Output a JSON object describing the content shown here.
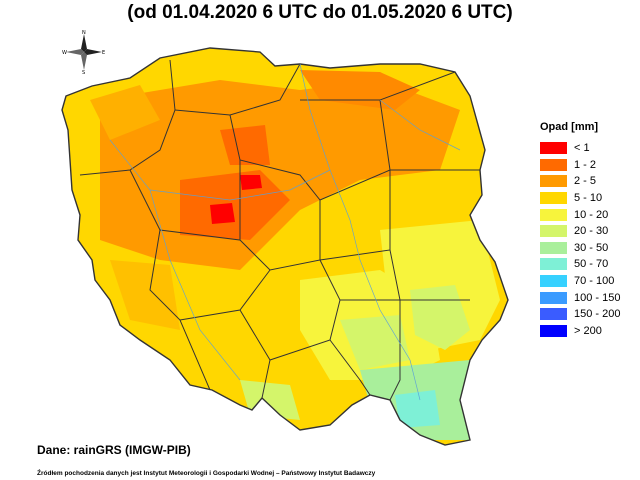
{
  "title": "(od 01.04.2020 6 UTC do 01.05.2020 6 UTC)",
  "legend": {
    "title": "Opad [mm]",
    "items": [
      {
        "label": "< 1",
        "color": "#ff0000"
      },
      {
        "label": "1 - 2",
        "color": "#ff6a00"
      },
      {
        "label": "2 - 5",
        "color": "#ff9a00"
      },
      {
        "label": "5 - 10",
        "color": "#ffd700"
      },
      {
        "label": "10 - 20",
        "color": "#f7f43c"
      },
      {
        "label": "20 - 30",
        "color": "#d4f56a"
      },
      {
        "label": "30 - 50",
        "color": "#a9ef9b"
      },
      {
        "label": "50 - 70",
        "color": "#7ef0d6"
      },
      {
        "label": "70 - 100",
        "color": "#36d1ff"
      },
      {
        "label": "100 - 150",
        "color": "#3b9bff"
      },
      {
        "label": "150 - 200",
        "color": "#3a5cff"
      },
      {
        "label": "> 200",
        "color": "#0000ff"
      }
    ]
  },
  "compass": {
    "north": "N",
    "south": "S",
    "east": "E",
    "west": "W"
  },
  "data_source": "Dane: rainGRS (IMGW-PIB)",
  "footer": "Źródłem pochodzenia danych jest Instytut Meteorologii i Gospodarki Wodnej – Państwowy Instytut Badawczy"
}
